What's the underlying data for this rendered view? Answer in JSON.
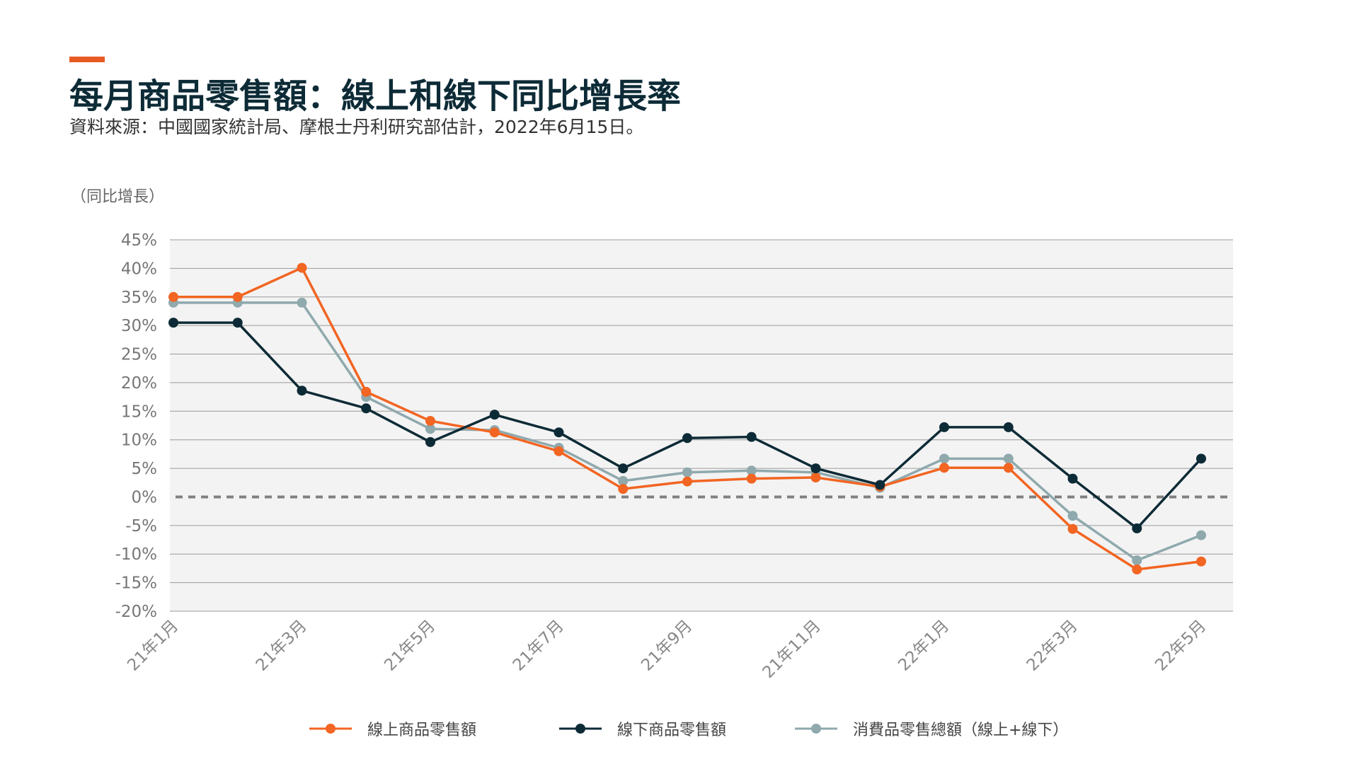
{
  "header": {
    "title": "每月商品零售額：線上和線下同比增長率",
    "subtitle": "資料來源：中國國家統計局、摩根士丹利研究部估計，2022年6月15日。",
    "unit_label": "（同比增長）"
  },
  "colors": {
    "accent": "#e85b25",
    "online": "#f26522",
    "offline": "#0d2b36",
    "total": "#8fa9ad",
    "plot_bg": "#f3f3f3",
    "grid": "#9a9a9a",
    "zero_line": "#808080"
  },
  "chart_data": {
    "type": "line",
    "x": [
      "21年1月",
      "21年2月",
      "21年3月",
      "21年4月",
      "21年5月",
      "21年6月",
      "21年7月",
      "21年8月",
      "21年9月",
      "21年10月",
      "21年11月",
      "21年12月",
      "22年1月",
      "22年2月",
      "22年3月",
      "22年4月",
      "22年5月"
    ],
    "x_tick_labels": [
      "21年1月",
      "21年3月",
      "21年5月",
      "21年7月",
      "21年9月",
      "21年11月",
      "22年1月",
      "22年3月",
      "22年5月"
    ],
    "x_tick_index": [
      0,
      2,
      4,
      6,
      8,
      10,
      12,
      14,
      16
    ],
    "ylim": [
      -20,
      45
    ],
    "y_ticks": [
      45,
      40,
      35,
      30,
      25,
      20,
      15,
      10,
      5,
      0,
      -5,
      -10,
      -15,
      -20
    ],
    "y_tick_labels": [
      "45%",
      "40%",
      "35%",
      "30%",
      "25%",
      "20%",
      "15%",
      "10%",
      "5%",
      "0%",
      "-5%",
      "-10%",
      "-15%",
      "-20%"
    ],
    "grid": true,
    "zero_line": "dashed",
    "legend_position": "bottom",
    "series": [
      {
        "name": "線上商品零售額",
        "color": "#f26522",
        "values": [
          35.0,
          35.0,
          40.1,
          18.4,
          13.3,
          11.3,
          8.0,
          1.4,
          2.7,
          3.2,
          3.4,
          1.8,
          5.1,
          5.1,
          -5.6,
          -12.7,
          -11.3
        ]
      },
      {
        "name": "線下商品零售額",
        "color": "#0d2b36",
        "values": [
          30.5,
          30.5,
          18.6,
          15.5,
          9.6,
          14.4,
          11.3,
          5.0,
          10.3,
          10.5,
          5.0,
          2.1,
          12.2,
          12.2,
          3.2,
          -5.5,
          6.7
        ]
      },
      {
        "name": "消費品零售總額（線上+線下）",
        "color": "#8fa9ad",
        "values": [
          34.0,
          34.0,
          34.0,
          17.5,
          11.9,
          11.7,
          8.6,
          2.8,
          4.3,
          4.6,
          4.3,
          1.6,
          6.7,
          6.7,
          -3.3,
          -11.1,
          -6.7
        ]
      }
    ]
  }
}
